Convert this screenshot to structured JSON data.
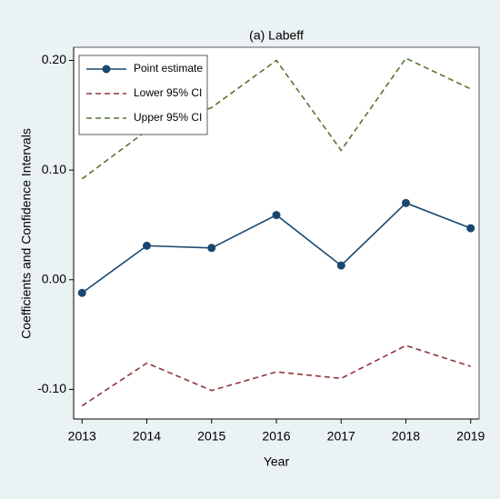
{
  "chart_data": {
    "type": "line",
    "title": "(a) Labeff",
    "xlabel": "Year",
    "ylabel": "Coefficients and Confidence Intervals",
    "x": [
      2013,
      2014,
      2015,
      2016,
      2017,
      2018,
      2019
    ],
    "xlim": [
      2012.87,
      2019.13
    ],
    "xticks": [
      2013,
      2014,
      2015,
      2016,
      2017,
      2018,
      2019
    ],
    "ylim": [
      -0.127,
      0.212
    ],
    "yticks": [
      {
        "value": -0.1,
        "label": "-0.10"
      },
      {
        "value": 0,
        "label": "0.00"
      },
      {
        "value": 0.1,
        "label": "0.10"
      },
      {
        "value": 0.2,
        "label": "0.20"
      }
    ],
    "legend": "top-left",
    "series": [
      {
        "name": "Point estimate",
        "color": "#1a476f",
        "style": "solid",
        "markers": true,
        "values": [
          -0.012,
          0.031,
          0.029,
          0.059,
          0.013,
          0.07,
          0.047
        ]
      },
      {
        "name": "Lower 95% CI",
        "color": "#90353b",
        "style": "dashed",
        "markers": false,
        "values": [
          -0.115,
          -0.076,
          -0.101,
          -0.084,
          -0.09,
          -0.06,
          -0.079
        ]
      },
      {
        "name": "Upper 95% CI",
        "color": "#55752f",
        "style": "dashed",
        "markers": false,
        "values": [
          0.092,
          0.136,
          0.157,
          0.2,
          0.118,
          0.202,
          0.174
        ]
      }
    ]
  }
}
